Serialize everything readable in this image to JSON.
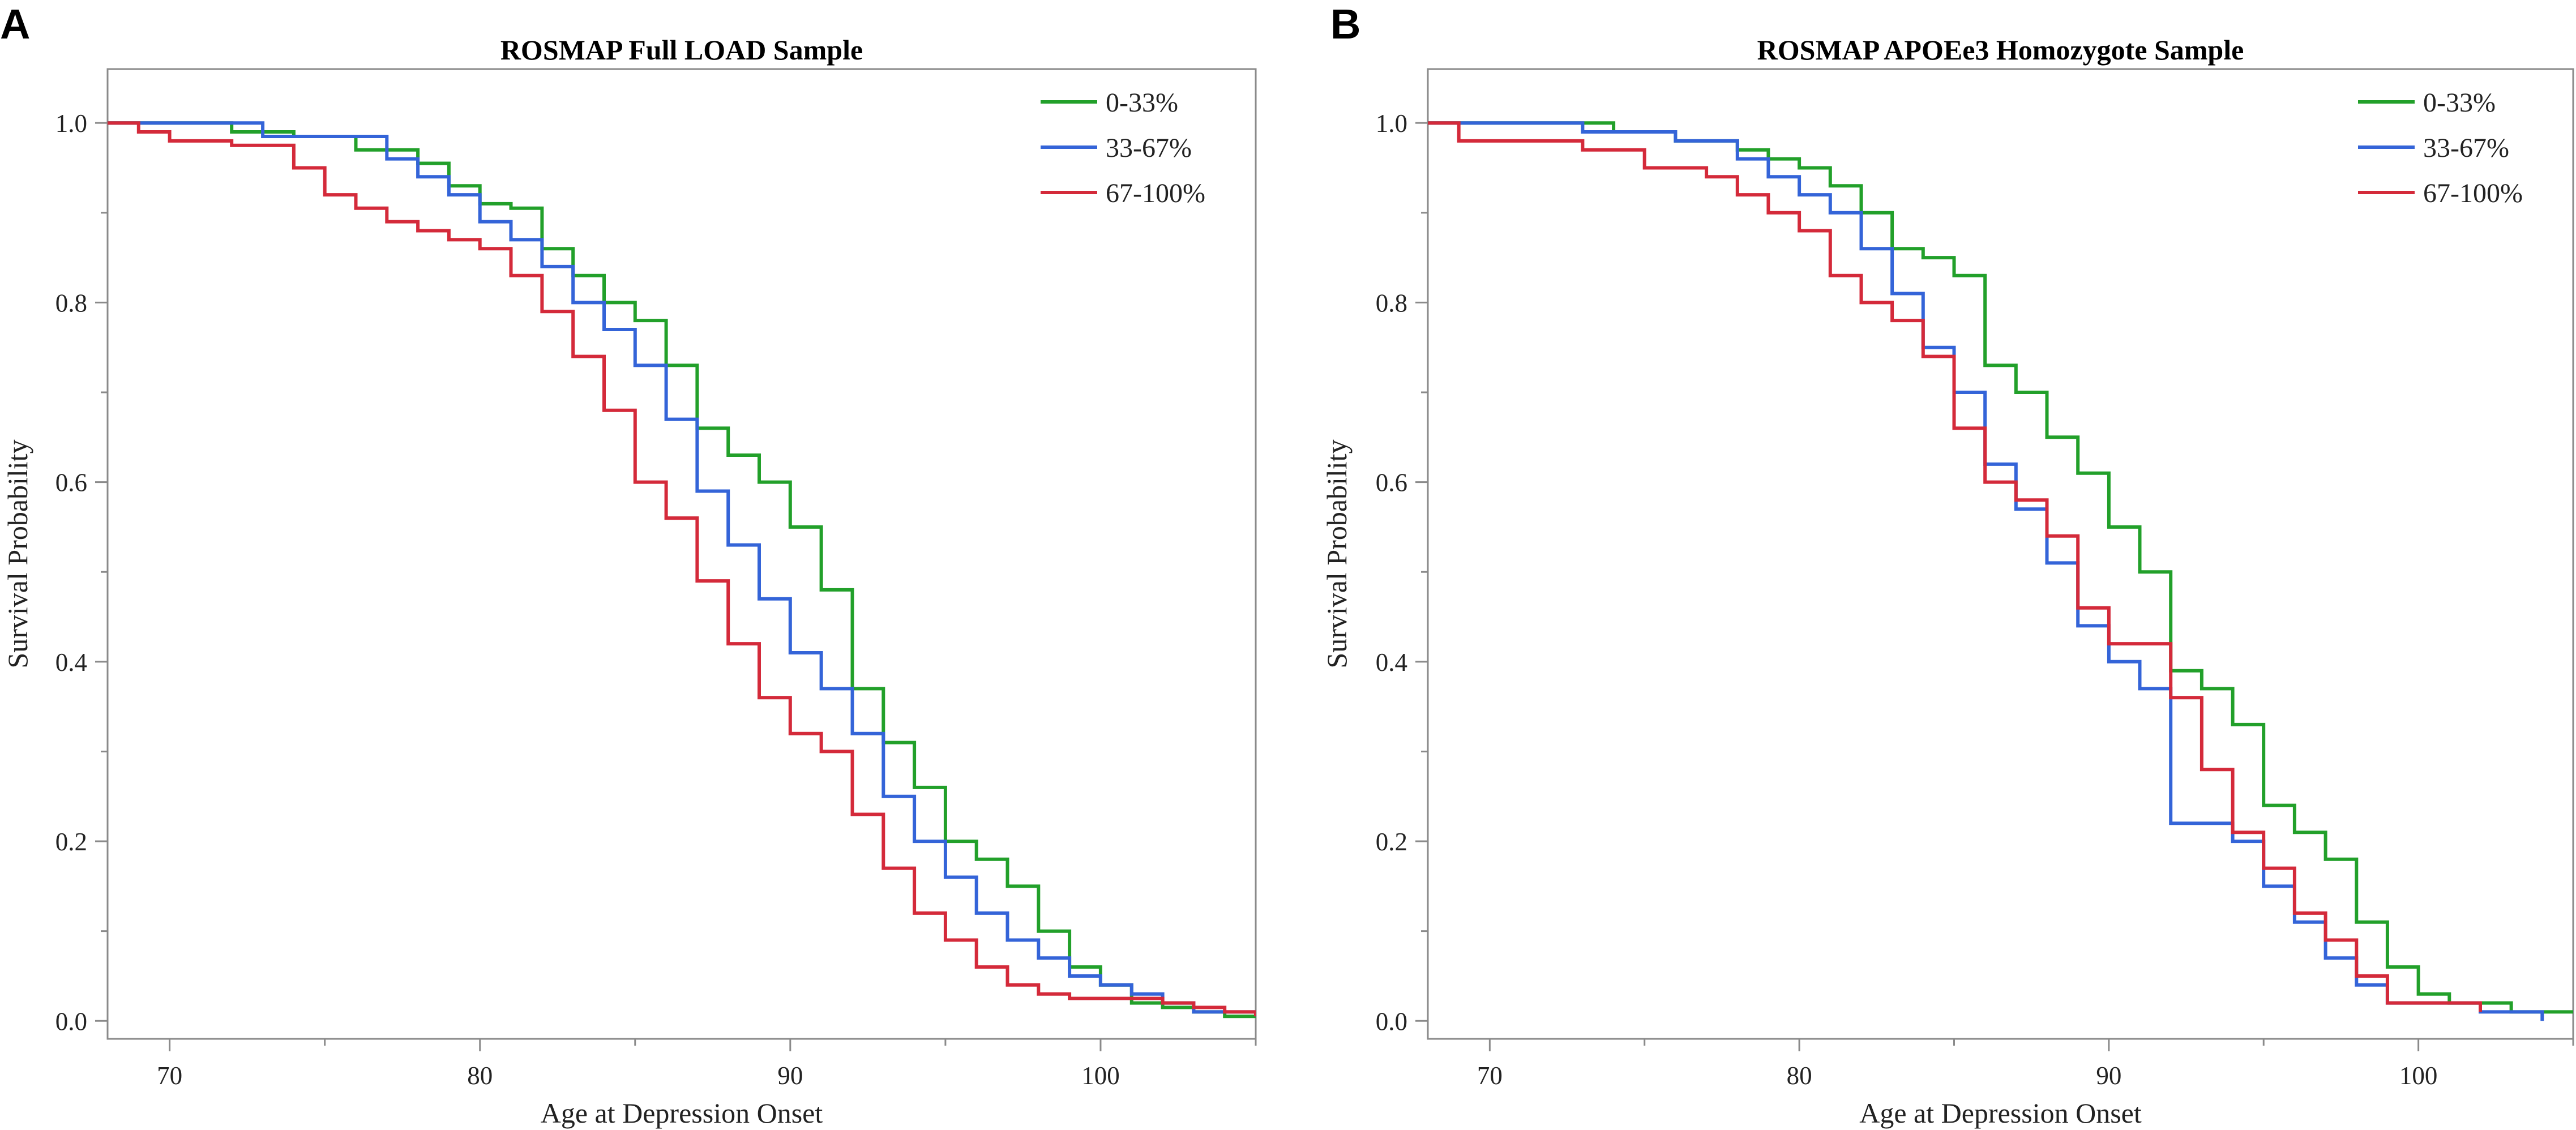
{
  "chart_data": [
    {
      "type": "line",
      "step": true,
      "panel_letter": "A",
      "title": "ROSMAP Full LOAD Sample",
      "xlabel": "Age at Depression Onset",
      "ylabel": "Survival Probability",
      "xlim": [
        68,
        105
      ],
      "ylim": [
        -0.02,
        1.06
      ],
      "xticks": [
        70,
        80,
        90,
        100
      ],
      "yticks": [
        0.0,
        0.2,
        0.4,
        0.6,
        0.8,
        1.0
      ],
      "ytick_labels": [
        "0.0",
        "0.2",
        "0.4",
        "0.6",
        "0.8",
        "1.0"
      ],
      "legend_position": "top-right",
      "series": [
        {
          "name": "0-33%",
          "color": "#22a02a",
          "x": [
            68,
            70,
            72,
            74,
            76,
            78,
            79,
            80,
            81,
            82,
            83,
            84,
            85,
            86,
            87,
            88,
            89,
            90,
            91,
            92,
            93,
            94,
            95,
            96,
            97,
            98,
            99,
            100,
            101,
            102,
            103,
            104,
            105
          ],
          "y": [
            1.0,
            1.0,
            0.99,
            0.985,
            0.97,
            0.955,
            0.93,
            0.91,
            0.905,
            0.86,
            0.83,
            0.8,
            0.78,
            0.73,
            0.66,
            0.63,
            0.6,
            0.55,
            0.48,
            0.37,
            0.31,
            0.26,
            0.2,
            0.18,
            0.15,
            0.1,
            0.06,
            0.04,
            0.02,
            0.015,
            0.01,
            0.005,
            0.005
          ]
        },
        {
          "name": "33-67%",
          "color": "#3464d8",
          "x": [
            68,
            70,
            72,
            73,
            74,
            76,
            77,
            78,
            79,
            80,
            81,
            82,
            83,
            84,
            85,
            86,
            87,
            88,
            89,
            90,
            91,
            92,
            93,
            94,
            95,
            96,
            97,
            98,
            99,
            100,
            101,
            102,
            103,
            104,
            105
          ],
          "y": [
            1.0,
            1.0,
            1.0,
            0.985,
            0.985,
            0.985,
            0.96,
            0.94,
            0.92,
            0.89,
            0.87,
            0.84,
            0.8,
            0.77,
            0.73,
            0.67,
            0.59,
            0.53,
            0.47,
            0.41,
            0.37,
            0.32,
            0.25,
            0.2,
            0.16,
            0.12,
            0.09,
            0.07,
            0.05,
            0.04,
            0.03,
            0.02,
            0.01,
            0.01,
            0.005
          ]
        },
        {
          "name": "67-100%",
          "color": "#d42a3a",
          "x": [
            68,
            69,
            70,
            72,
            74,
            75,
            76,
            77,
            78,
            79,
            80,
            81,
            82,
            83,
            84,
            85,
            86,
            87,
            88,
            89,
            90,
            91,
            92,
            93,
            94,
            95,
            96,
            97,
            98,
            99,
            100,
            101,
            102,
            103,
            104,
            105
          ],
          "y": [
            1.0,
            0.99,
            0.98,
            0.975,
            0.95,
            0.92,
            0.905,
            0.89,
            0.88,
            0.87,
            0.86,
            0.83,
            0.79,
            0.74,
            0.68,
            0.6,
            0.56,
            0.49,
            0.42,
            0.36,
            0.32,
            0.3,
            0.23,
            0.17,
            0.12,
            0.09,
            0.06,
            0.04,
            0.03,
            0.025,
            0.025,
            0.025,
            0.02,
            0.015,
            0.01,
            0.005
          ]
        }
      ]
    },
    {
      "type": "line",
      "step": true,
      "panel_letter": "B",
      "title": "ROSMAP APOEe3 Homozygote Sample",
      "xlabel": "Age at Depression Onset",
      "ylabel": "Survival Probability",
      "xlim": [
        68,
        105
      ],
      "ylim": [
        -0.02,
        1.06
      ],
      "xticks": [
        70,
        80,
        90,
        100
      ],
      "yticks": [
        0.0,
        0.2,
        0.4,
        0.6,
        0.8,
        1.0
      ],
      "ytick_labels": [
        "0.0",
        "0.2",
        "0.4",
        "0.6",
        "0.8",
        "1.0"
      ],
      "legend_position": "top-right",
      "series": [
        {
          "name": "0-33%",
          "color": "#22a02a",
          "x": [
            68,
            70,
            72,
            74,
            76,
            78,
            79,
            80,
            81,
            82,
            83,
            84,
            85,
            86,
            87,
            88,
            89,
            90,
            91,
            92,
            93,
            94,
            95,
            96,
            97,
            98,
            99,
            100,
            101,
            102,
            103,
            104,
            105
          ],
          "y": [
            1.0,
            1.0,
            1.0,
            0.99,
            0.98,
            0.97,
            0.96,
            0.95,
            0.93,
            0.9,
            0.86,
            0.85,
            0.83,
            0.73,
            0.7,
            0.65,
            0.61,
            0.55,
            0.5,
            0.39,
            0.37,
            0.33,
            0.24,
            0.21,
            0.18,
            0.11,
            0.06,
            0.03,
            0.02,
            0.02,
            0.01,
            0.01,
            0.01
          ]
        },
        {
          "name": "33-67%",
          "color": "#3464d8",
          "x": [
            68,
            70,
            72,
            73,
            74,
            76,
            78,
            79,
            80,
            81,
            82,
            83,
            84,
            85,
            86,
            87,
            88,
            89,
            90,
            91,
            92,
            93,
            94,
            95,
            96,
            97,
            98,
            99,
            100,
            101,
            102,
            103,
            104
          ],
          "y": [
            1.0,
            1.0,
            1.0,
            0.99,
            0.99,
            0.98,
            0.96,
            0.94,
            0.92,
            0.9,
            0.86,
            0.81,
            0.75,
            0.7,
            0.62,
            0.57,
            0.51,
            0.44,
            0.4,
            0.37,
            0.22,
            0.22,
            0.2,
            0.15,
            0.11,
            0.07,
            0.04,
            0.02,
            0.02,
            0.02,
            0.01,
            0.01,
            0.0
          ]
        },
        {
          "name": "67-100%",
          "color": "#d42a3a",
          "x": [
            68,
            69,
            70,
            72,
            73,
            74,
            75,
            76,
            77,
            78,
            79,
            80,
            81,
            82,
            83,
            84,
            85,
            86,
            87,
            88,
            89,
            90,
            91,
            92,
            93,
            94,
            95,
            96,
            97,
            98,
            99,
            100,
            101,
            102
          ],
          "y": [
            1.0,
            0.98,
            0.98,
            0.98,
            0.97,
            0.97,
            0.95,
            0.95,
            0.94,
            0.92,
            0.9,
            0.88,
            0.83,
            0.8,
            0.78,
            0.74,
            0.66,
            0.6,
            0.58,
            0.54,
            0.46,
            0.42,
            0.42,
            0.36,
            0.28,
            0.21,
            0.17,
            0.12,
            0.09,
            0.05,
            0.02,
            0.02,
            0.02,
            0.01
          ]
        }
      ]
    }
  ]
}
